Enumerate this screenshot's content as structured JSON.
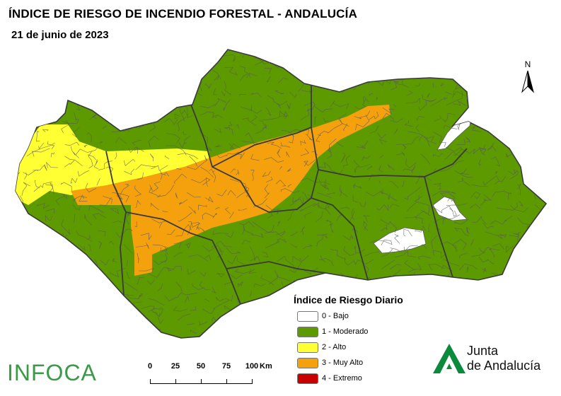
{
  "title": "ÍNDICE DE RIESGO DE INCENDIO FORESTAL - ANDALUCÍA",
  "date": "21 de junio de 2023",
  "north_label": "N",
  "legend": {
    "title": "Índice de Riesgo Diario",
    "items": [
      {
        "label": "0 - Bajo",
        "color": "#ffffff"
      },
      {
        "label": "1 - Moderado",
        "color": "#5c9a00"
      },
      {
        "label": "2 - Alto",
        "color": "#ffff33"
      },
      {
        "label": "3 - Muy Alto",
        "color": "#f5a10e"
      },
      {
        "label": "4 - Extremo",
        "color": "#c80000"
      }
    ]
  },
  "scale": {
    "ticks": [
      "0",
      "25",
      "50",
      "75",
      "100"
    ],
    "unit": "Km"
  },
  "logos": {
    "infoca": "INFOCA",
    "junta_line1": "Junta",
    "junta_line2": "de Andalucía"
  },
  "colors": {
    "border_province": "#3a3a3a",
    "border_municipal": "#5a5a5a",
    "brand_green": "#3a9a47"
  }
}
